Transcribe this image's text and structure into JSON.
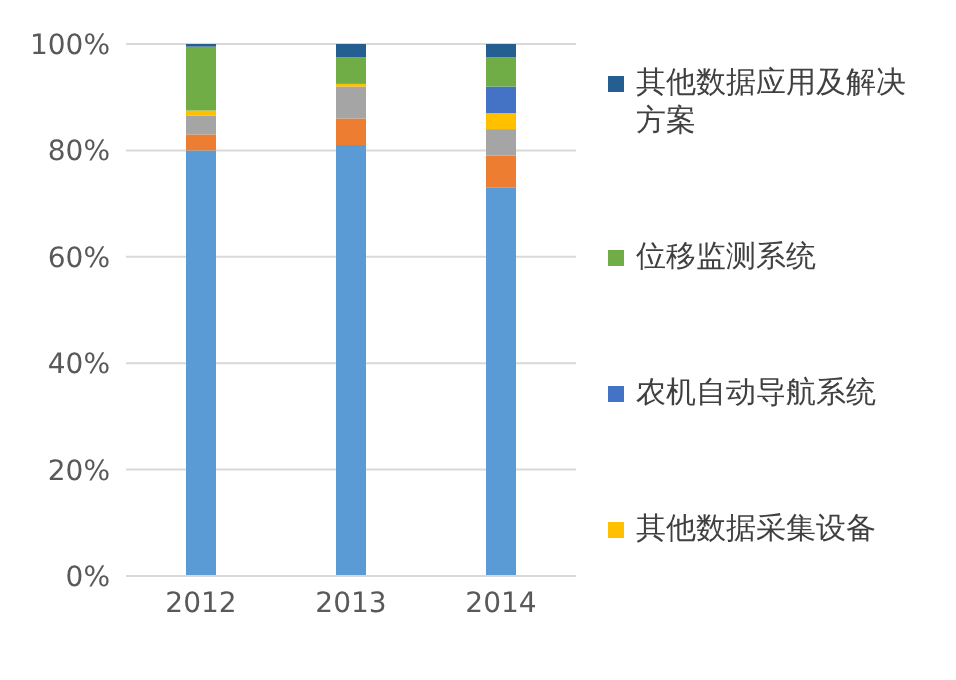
{
  "chart_data": {
    "type": "bar",
    "stacked": true,
    "categories": [
      "2012",
      "2013",
      "2014"
    ],
    "series": [
      {
        "color": "#5b9bd5",
        "values": [
          80,
          81,
          73
        ]
      },
      {
        "color": "#ed7d31",
        "values": [
          3,
          5,
          6
        ]
      },
      {
        "color": "#a5a5a5",
        "values": [
          3.5,
          6,
          5
        ]
      },
      {
        "name": "其他数据采集设备",
        "color": "#ffc000",
        "values": [
          1,
          0.5,
          3
        ]
      },
      {
        "name": "农机自动导航系统",
        "color": "#4472c4",
        "values": [
          null,
          null,
          5
        ]
      },
      {
        "name": "位移监测系统",
        "color": "#70ad47",
        "values": [
          12,
          5,
          5.5
        ]
      },
      {
        "name": "其他数据应用及解决方案",
        "color": "#255e91",
        "values": [
          0.5,
          2.5,
          2.5
        ]
      }
    ],
    "ylim": [
      0,
      100
    ],
    "yticks": [
      {
        "value": 0,
        "label": "0%"
      },
      {
        "value": 20,
        "label": "20%"
      },
      {
        "value": 40,
        "label": "40%"
      },
      {
        "value": 60,
        "label": "60%"
      },
      {
        "value": 80,
        "label": "80%"
      },
      {
        "value": 100,
        "label": "100%"
      }
    ],
    "grid": "y",
    "legend": "right"
  }
}
